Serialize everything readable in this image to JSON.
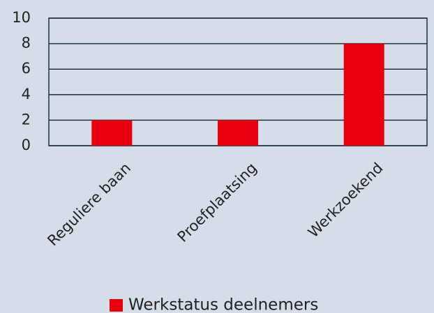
{
  "chart_data": {
    "type": "bar",
    "categories": [
      "Reguliere baan",
      "Proefplaatsing",
      "Werkzoekend"
    ],
    "series": [
      {
        "name": "Werkstatus deelnemers",
        "color": "#e8000f",
        "values": [
          2,
          2,
          8
        ]
      }
    ],
    "ylim": [
      0,
      10
    ],
    "yticks": [
      0,
      2,
      4,
      6,
      8,
      10
    ],
    "grid": true,
    "legend": "bottom"
  }
}
